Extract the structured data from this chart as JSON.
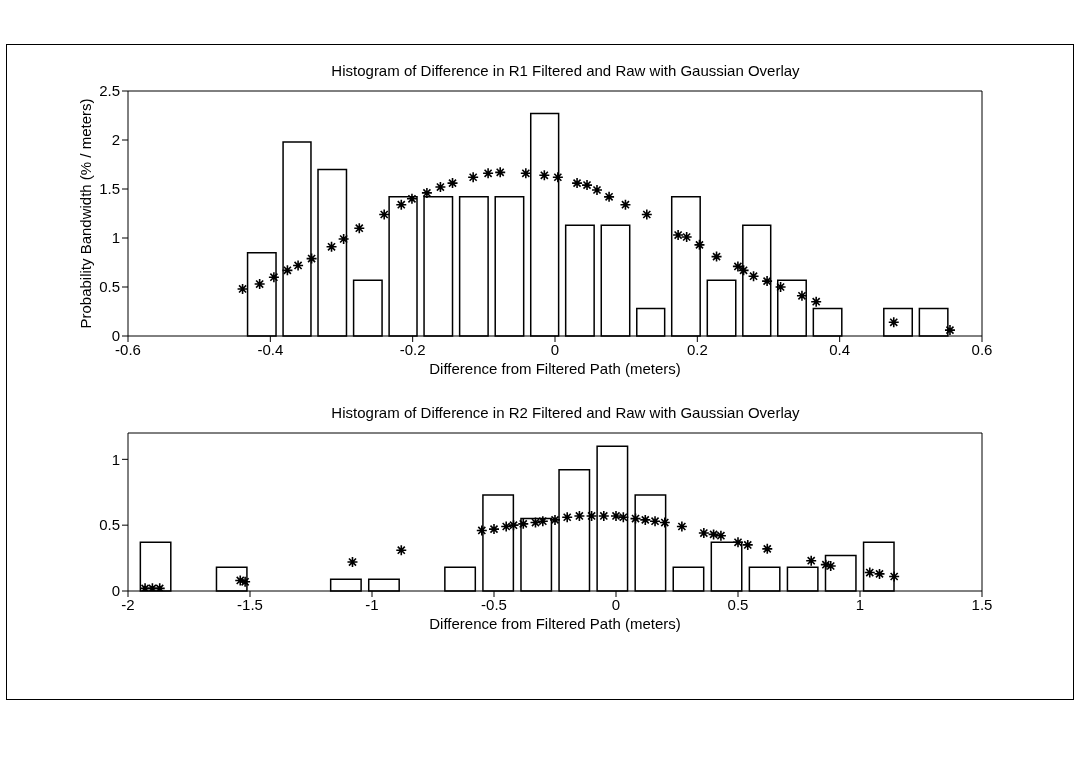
{
  "chart_data": [
    {
      "type": "histogram",
      "title": "Histogram of Difference in R1 Filtered and Raw with Gaussian Overlay",
      "xlabel": "Difference from Filtered Path (meters)",
      "ylabel": "Probability Bandwidth (% / meters)",
      "bins": [
        -0.437,
        -0.387,
        -0.338,
        -0.288,
        -0.238,
        -0.189,
        -0.139,
        -0.089,
        -0.039,
        0.01,
        0.06,
        0.11,
        0.159,
        0.209,
        0.259,
        0.308,
        0.358,
        0.408,
        0.457,
        0.507,
        0.557
      ],
      "values": [
        0.85,
        1.98,
        1.7,
        0.57,
        1.42,
        1.42,
        1.42,
        1.42,
        2.27,
        1.13,
        1.13,
        0.28,
        1.42,
        0.57,
        1.13,
        0.57,
        0.28,
        0,
        0.28,
        0.28
      ],
      "color": "#ffffff",
      "series": [
        {
          "type": "scatter",
          "color": "#000000",
          "x": [
            -0.439,
            -0.415,
            -0.395,
            -0.376,
            -0.361,
            -0.342,
            -0.314,
            -0.297,
            -0.275,
            -0.24,
            -0.216,
            -0.201,
            -0.18,
            -0.161,
            -0.144,
            -0.115,
            -0.094,
            -0.077,
            -0.041,
            -0.015,
            0.004,
            0.031,
            0.045,
            0.059,
            0.076,
            0.099,
            0.129,
            0.173,
            0.185,
            0.203,
            0.227,
            0.257,
            0.265,
            0.279,
            0.298,
            0.317,
            0.347,
            0.367,
            0.476,
            0.555
          ],
          "values": [
            0.48,
            0.53,
            0.6,
            0.67,
            0.72,
            0.79,
            0.91,
            0.99,
            1.1,
            1.24,
            1.34,
            1.4,
            1.46,
            1.52,
            1.56,
            1.62,
            1.66,
            1.67,
            1.66,
            1.64,
            1.62,
            1.56,
            1.54,
            1.49,
            1.42,
            1.34,
            1.24,
            1.03,
            1.01,
            0.93,
            0.81,
            0.71,
            0.67,
            0.61,
            0.56,
            0.5,
            0.41,
            0.35,
            0.14,
            0.06
          ]
        }
      ],
      "xlim": [
        -0.6,
        0.6
      ],
      "xticks": [
        -0.6,
        -0.4,
        -0.2,
        0,
        0.2,
        0.4,
        0.6
      ],
      "ylim": [
        0,
        2.5
      ],
      "yticks": [
        0,
        0.5,
        1,
        1.5,
        2,
        2.5
      ],
      "marker": "cross"
    },
    {
      "type": "histogram",
      "title": "Histogram of Difference in R2 Filtered and Raw with Gaussian Overlay",
      "xlabel": "Difference from Filtered Path (meters)",
      "bins": [
        -1.965,
        -1.809,
        -1.653,
        -1.497,
        -1.341,
        -1.185,
        -1.029,
        -0.873,
        -0.717,
        -0.561,
        -0.405,
        -0.249,
        -0.093,
        0.063,
        0.219,
        0.375,
        0.531,
        0.687,
        0.843,
        0.999,
        1.155
      ],
      "values": [
        0.37,
        0,
        0.18,
        0,
        0,
        0.09,
        0.09,
        0,
        0.18,
        0.73,
        0.55,
        0.92,
        1.1,
        0.73,
        0.18,
        0.37,
        0.18,
        0.18,
        0.27,
        0.37
      ],
      "color": "#ffffff",
      "series": [
        {
          "type": "scatter",
          "color": "#000000",
          "x": [
            -1.93,
            -1.9,
            -1.87,
            -1.54,
            -1.52,
            -1.08,
            -0.88,
            -0.55,
            -0.5,
            -0.45,
            -0.42,
            -0.38,
            -0.33,
            -0.3,
            -0.25,
            -0.2,
            -0.15,
            -0.1,
            -0.05,
            0,
            0.03,
            0.08,
            0.12,
            0.16,
            0.2,
            0.27,
            0.36,
            0.4,
            0.43,
            0.5,
            0.54,
            0.62,
            0.8,
            0.86,
            0.88,
            1.04,
            1.08,
            1.14
          ],
          "values": [
            0.02,
            0.02,
            0.02,
            0.08,
            0.07,
            0.22,
            0.31,
            0.46,
            0.47,
            0.49,
            0.5,
            0.51,
            0.52,
            0.53,
            0.54,
            0.56,
            0.57,
            0.57,
            0.57,
            0.57,
            0.56,
            0.55,
            0.54,
            0.53,
            0.52,
            0.49,
            0.44,
            0.43,
            0.42,
            0.37,
            0.35,
            0.32,
            0.23,
            0.2,
            0.19,
            0.14,
            0.13,
            0.11
          ]
        }
      ],
      "xlim": [
        -2,
        1.5
      ],
      "xticks": [
        -2,
        -1.5,
        -1,
        -0.5,
        0,
        0.5,
        1,
        1.5
      ],
      "ylim": [
        0,
        1.2
      ],
      "yticks": [
        0,
        0.5,
        1
      ],
      "marker": "cross"
    }
  ]
}
